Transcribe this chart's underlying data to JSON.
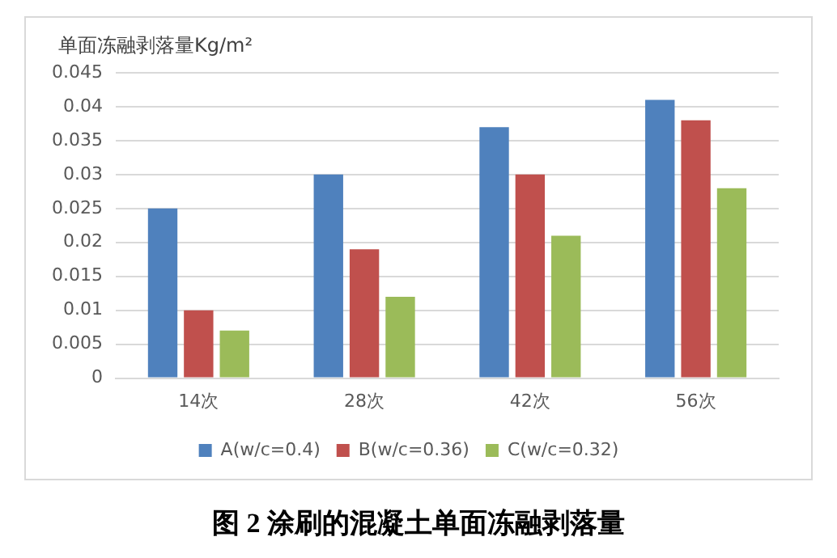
{
  "chart_data": {
    "type": "bar",
    "ylabel": "单面冻融剥落量Kg/m²",
    "categories": [
      "14次",
      "28次",
      "42次",
      "56次"
    ],
    "series": [
      {
        "name": "A(w/c=0.4)",
        "color": "#4f81bd",
        "values": [
          0.025,
          0.03,
          0.037,
          0.041
        ]
      },
      {
        "name": "B(w/c=0.36)",
        "color": "#c0504d",
        "values": [
          0.01,
          0.019,
          0.03,
          0.038
        ]
      },
      {
        "name": "C(w/c=0.32)",
        "color": "#9bbb59",
        "values": [
          0.007,
          0.012,
          0.021,
          0.028
        ]
      }
    ],
    "ylim": [
      0,
      0.045
    ],
    "yticks": [
      0,
      0.005,
      0.01,
      0.015,
      0.02,
      0.025,
      0.03,
      0.035,
      0.04,
      0.045
    ],
    "grid": "y",
    "legend": "bottom",
    "annotations": [
      "图 2 涂刷的混凝土单面冻融剥落量"
    ]
  }
}
